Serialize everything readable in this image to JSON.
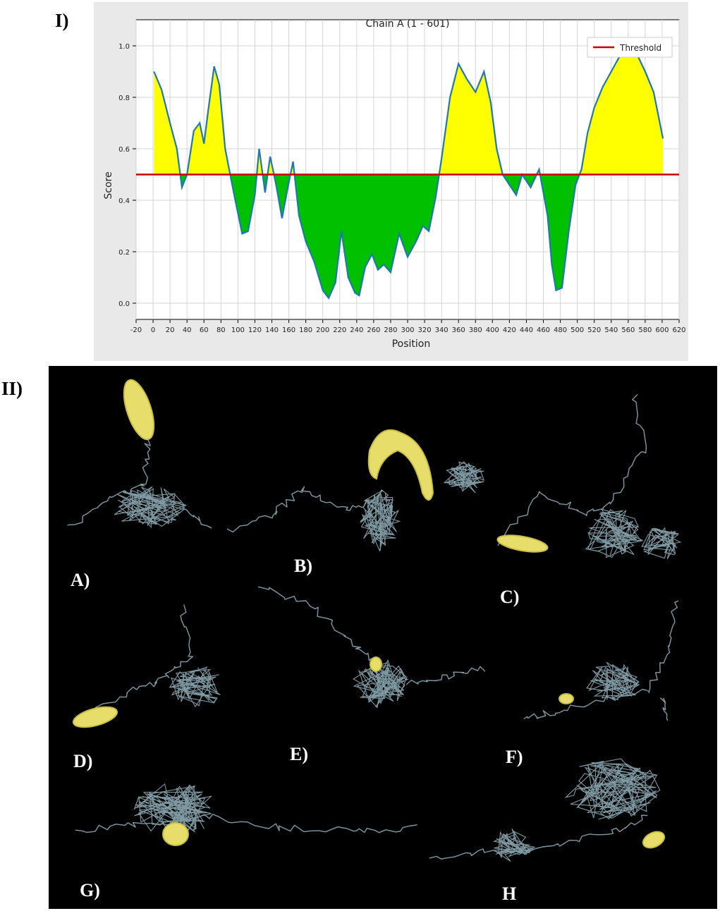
{
  "panels": {
    "top_label": "I)",
    "bottom_label": "II)"
  },
  "chart_data": {
    "type": "area",
    "title": "Chain A (1 - 601)",
    "xlabel": "Position",
    "ylabel": "Score",
    "xlim": [
      -20,
      620
    ],
    "ylim": [
      0.0,
      1.0
    ],
    "grid": true,
    "legend": {
      "position": "top-right",
      "entries": [
        "Threshold"
      ]
    },
    "threshold": {
      "name": "Threshold",
      "value": 0.5,
      "color": "#cc0000"
    },
    "colors": {
      "line": "#1f77b4",
      "above": "#ffff00",
      "below": "#00c000",
      "background": "#e9e9e9"
    },
    "x_ticks": [
      -20,
      0,
      20,
      40,
      60,
      80,
      100,
      120,
      140,
      160,
      180,
      200,
      220,
      240,
      260,
      280,
      300,
      320,
      340,
      360,
      380,
      400,
      420,
      440,
      460,
      480,
      500,
      520,
      540,
      560,
      580,
      600,
      620
    ],
    "y_ticks": [
      0.0,
      0.2,
      0.4,
      0.6,
      0.8,
      1.0
    ],
    "x": [
      1,
      10,
      20,
      28,
      34,
      40,
      48,
      55,
      60,
      65,
      72,
      78,
      85,
      95,
      105,
      112,
      120,
      125,
      132,
      138,
      145,
      152,
      160,
      165,
      172,
      180,
      190,
      200,
      207,
      215,
      222,
      230,
      238,
      243,
      250,
      258,
      265,
      272,
      280,
      290,
      300,
      310,
      318,
      325,
      333,
      340,
      350,
      360,
      370,
      380,
      390,
      398,
      405,
      412,
      420,
      428,
      435,
      445,
      455,
      465,
      470,
      475,
      482,
      490,
      498,
      505,
      512,
      520,
      530,
      540,
      550,
      560,
      570,
      580,
      590,
      601
    ],
    "values": [
      0.9,
      0.83,
      0.7,
      0.6,
      0.45,
      0.5,
      0.67,
      0.7,
      0.62,
      0.75,
      0.92,
      0.85,
      0.6,
      0.43,
      0.27,
      0.28,
      0.42,
      0.6,
      0.43,
      0.57,
      0.46,
      0.33,
      0.47,
      0.55,
      0.34,
      0.24,
      0.16,
      0.05,
      0.02,
      0.08,
      0.28,
      0.1,
      0.04,
      0.03,
      0.14,
      0.19,
      0.13,
      0.15,
      0.12,
      0.27,
      0.18,
      0.24,
      0.3,
      0.28,
      0.41,
      0.56,
      0.8,
      0.93,
      0.87,
      0.82,
      0.9,
      0.78,
      0.6,
      0.5,
      0.46,
      0.42,
      0.5,
      0.45,
      0.52,
      0.34,
      0.15,
      0.05,
      0.06,
      0.28,
      0.46,
      0.52,
      0.66,
      0.76,
      0.84,
      0.9,
      0.96,
      0.99,
      0.97,
      0.9,
      0.82,
      0.64
    ]
  },
  "structures": {
    "labels": [
      "A)",
      "B)",
      "C)",
      "D)",
      "E)",
      "F)",
      "G)",
      "H"
    ]
  }
}
